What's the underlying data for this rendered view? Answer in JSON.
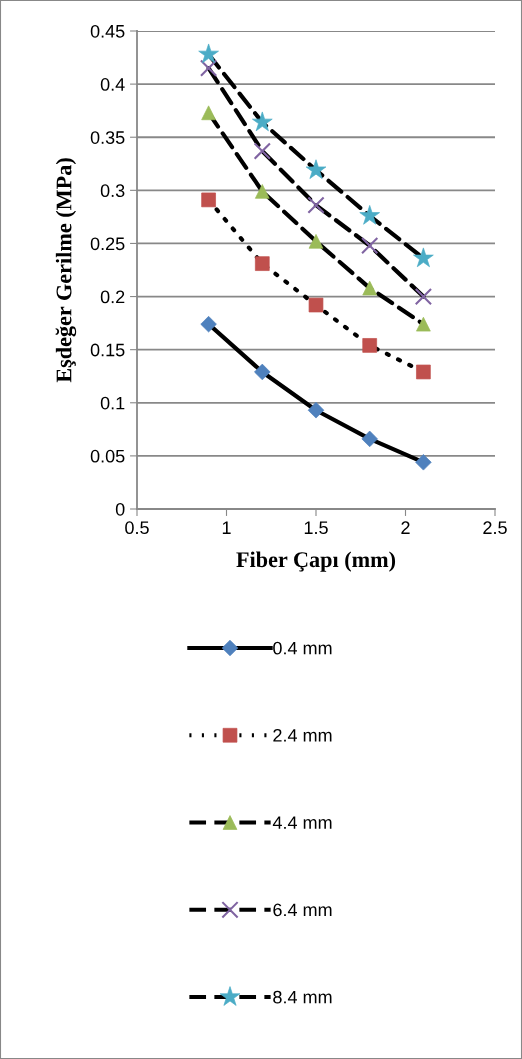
{
  "chart_data": {
    "type": "line",
    "xlabel": "Fiber Çapı (mm)",
    "ylabel": "Eşdeğer Gerilme (MPa)",
    "x": [
      0.9,
      1.2,
      1.5,
      1.8,
      2.1
    ],
    "series": [
      {
        "name": "0.4 mm",
        "color": "#4f81bd",
        "marker": "diamond",
        "line_style": "solid",
        "values": [
          0.174,
          0.129,
          0.093,
          0.066,
          0.044
        ]
      },
      {
        "name": "2.4 mm",
        "color": "#c0504d",
        "marker": "square",
        "line_style": "dotted",
        "values": [
          0.291,
          0.231,
          0.192,
          0.154,
          0.129
        ]
      },
      {
        "name": "4.4 mm",
        "color": "#9bbb59",
        "marker": "triangle",
        "line_style": "dashed",
        "values": [
          0.373,
          0.299,
          0.252,
          0.208,
          0.174
        ]
      },
      {
        "name": "6.4 mm",
        "color": "#8064a2",
        "marker": "cross",
        "line_style": "dashed",
        "values": [
          0.415,
          0.337,
          0.286,
          0.248,
          0.2
        ]
      },
      {
        "name": "8.4 mm",
        "color": "#4bacc6",
        "marker": "star",
        "line_style": "dashed",
        "values": [
          0.428,
          0.364,
          0.319,
          0.276,
          0.236
        ]
      }
    ],
    "xlim": [
      0.5,
      2.5
    ],
    "xticks": [
      0.5,
      1,
      1.5,
      2,
      2.5
    ],
    "ylim": [
      0,
      0.45
    ],
    "yticks": [
      0,
      0.05,
      0.1,
      0.15,
      0.2,
      0.25,
      0.3,
      0.35,
      0.4,
      0.45
    ],
    "grid": "y",
    "legend": "bottom"
  }
}
